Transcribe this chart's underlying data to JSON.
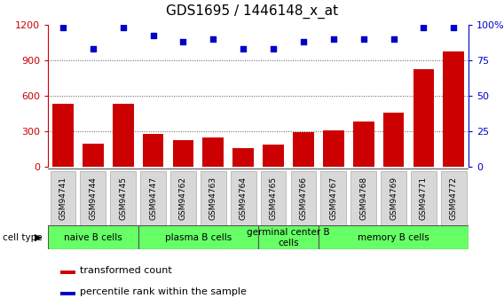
{
  "title": "GDS1695 / 1446148_x_at",
  "samples": [
    "GSM94741",
    "GSM94744",
    "GSM94745",
    "GSM94747",
    "GSM94762",
    "GSM94763",
    "GSM94764",
    "GSM94765",
    "GSM94766",
    "GSM94767",
    "GSM94768",
    "GSM94769",
    "GSM94771",
    "GSM94772"
  ],
  "transformed_count": [
    530,
    195,
    530,
    280,
    225,
    250,
    160,
    185,
    290,
    310,
    380,
    460,
    820,
    970
  ],
  "percentile_rank": [
    98,
    83,
    98,
    92,
    88,
    90,
    83,
    83,
    88,
    90,
    90,
    90,
    98,
    98
  ],
  "cell_type_groups": [
    {
      "label": "naive B cells",
      "start": 0,
      "end": 3
    },
    {
      "label": "plasma B cells",
      "start": 3,
      "end": 7
    },
    {
      "label": "germinal center B\ncells",
      "start": 7,
      "end": 9
    },
    {
      "label": "memory B cells",
      "start": 9,
      "end": 14
    }
  ],
  "ylim_left": [
    0,
    1200
  ],
  "ylim_right": [
    0,
    100
  ],
  "yticks_left": [
    0,
    300,
    600,
    900,
    1200
  ],
  "yticks_right": [
    0,
    25,
    50,
    75,
    100
  ],
  "bar_color": "#cc0000",
  "dot_color": "#0000cc",
  "bar_width": 0.7,
  "title_fontsize": 11,
  "axis_label_color_left": "#cc0000",
  "axis_label_color_right": "#0000cc",
  "cell_type_group_color": "#66ff66",
  "xtick_bg_color": "#d8d8d8",
  "grid_color": "#555555"
}
